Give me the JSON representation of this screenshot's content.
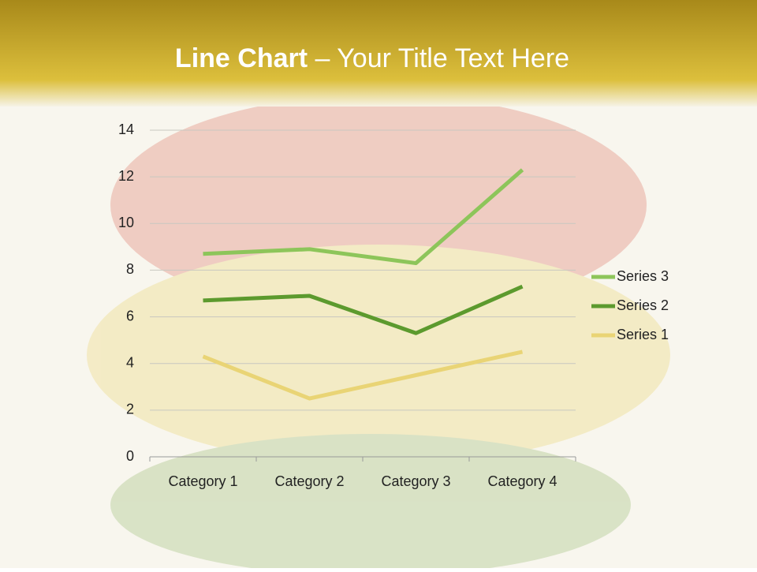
{
  "chart_data": {
    "type": "line",
    "stacked": true,
    "title": "Line Chart",
    "subtitle": "– Your Title Text Here",
    "categories": [
      "Category 1",
      "Category 2",
      "Category 3",
      "Category 4"
    ],
    "series": [
      {
        "name": "Series 1",
        "color": "#e9d475",
        "values": [
          4.3,
          2.5,
          3.5,
          4.5
        ]
      },
      {
        "name": "Series 2",
        "color": "#5c9a2e",
        "values": [
          2.4,
          4.4,
          1.8,
          2.8
        ]
      },
      {
        "name": "Series 3",
        "color": "#8dc55a",
        "values": [
          2,
          2,
          3,
          5
        ]
      }
    ],
    "ylim": [
      0,
      14
    ],
    "yticks": [
      0,
      2,
      4,
      6,
      8,
      10,
      12,
      14
    ],
    "grid": true,
    "legend": "right"
  }
}
